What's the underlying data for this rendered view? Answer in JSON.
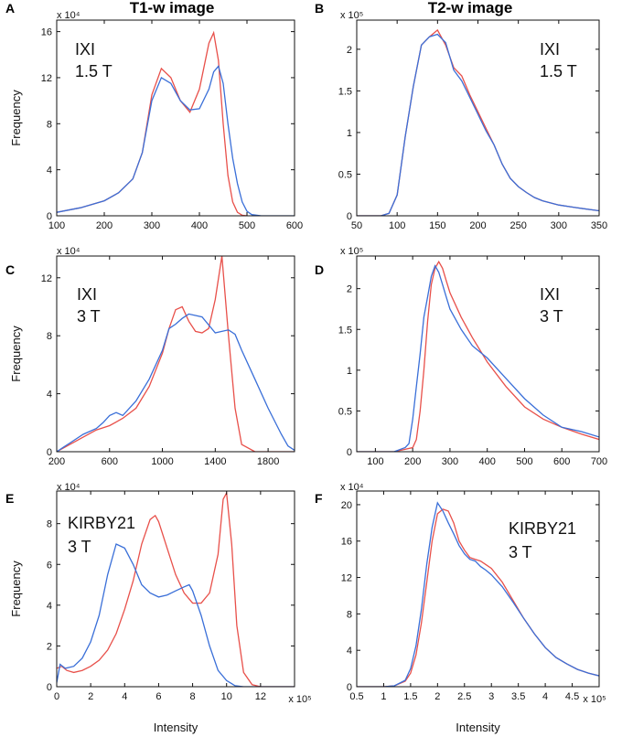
{
  "column_titles": [
    "T1-w image",
    "T2-w image"
  ],
  "colors": {
    "red": "#e8504a",
    "blue": "#3a6fd8",
    "axis": "#111111"
  },
  "chart_data": [
    {
      "id": "A",
      "type": "line",
      "letter": "A",
      "ylabel": "Frequency",
      "xlabel": "",
      "y_exponent": "x 10⁴",
      "annotation": [
        "IXI",
        "1.5 T"
      ],
      "xlim": [
        100,
        600
      ],
      "ylim": [
        0,
        17
      ],
      "xticks": [
        100,
        200,
        300,
        400,
        500,
        600
      ],
      "xtick_labels": [
        "100",
        "200",
        "300",
        "400",
        "500",
        "600"
      ],
      "yticks": [
        0,
        4,
        8,
        12,
        16
      ],
      "ytick_labels": [
        "0",
        "4",
        "8",
        "12",
        "16"
      ],
      "series": [
        {
          "name": "red",
          "x": [
            100,
            150,
            200,
            230,
            260,
            280,
            300,
            320,
            340,
            360,
            380,
            400,
            420,
            430,
            440,
            450,
            460,
            470,
            480,
            490,
            500
          ],
          "y": [
            0.3,
            0.7,
            1.3,
            2.0,
            3.2,
            5.5,
            10.5,
            12.8,
            12.0,
            10.0,
            9.0,
            11.0,
            15.0,
            15.9,
            13.5,
            8.0,
            3.5,
            1.2,
            0.3,
            0.05,
            0
          ]
        },
        {
          "name": "blue",
          "x": [
            100,
            150,
            200,
            230,
            260,
            280,
            300,
            320,
            340,
            360,
            380,
            400,
            420,
            430,
            440,
            450,
            460,
            470,
            480,
            490,
            500,
            510,
            530,
            550,
            600
          ],
          "y": [
            0.3,
            0.7,
            1.3,
            2.0,
            3.2,
            5.5,
            10.0,
            12.0,
            11.5,
            10.0,
            9.2,
            9.3,
            11.0,
            12.5,
            13.0,
            11.5,
            8.0,
            5.0,
            2.8,
            1.2,
            0.4,
            0.1,
            0,
            0,
            0
          ]
        }
      ]
    },
    {
      "id": "B",
      "type": "line",
      "letter": "B",
      "ylabel": "",
      "xlabel": "",
      "y_exponent": "x 10⁵",
      "annotation": [
        "IXI",
        "1.5 T"
      ],
      "xlim": [
        50,
        350
      ],
      "ylim": [
        0,
        2.35
      ],
      "xticks": [
        50,
        100,
        150,
        200,
        250,
        300,
        350
      ],
      "xtick_labels": [
        "50",
        "100",
        "150",
        "200",
        "250",
        "300",
        "350"
      ],
      "yticks": [
        0,
        0.5,
        1,
        1.5,
        2
      ],
      "ytick_labels": [
        "0",
        "0.5",
        "1",
        "1.5",
        "2"
      ],
      "series": [
        {
          "name": "red",
          "x": [
            50,
            80,
            90,
            100,
            110,
            120,
            130,
            140,
            150,
            160,
            170,
            180,
            190,
            200,
            210,
            220,
            230,
            240,
            250,
            260,
            270,
            280,
            300,
            320,
            350
          ],
          "y": [
            0,
            0,
            0.03,
            0.25,
            0.95,
            1.55,
            2.05,
            2.15,
            2.23,
            2.05,
            1.78,
            1.68,
            1.45,
            1.25,
            1.05,
            0.85,
            0.62,
            0.45,
            0.35,
            0.28,
            0.22,
            0.18,
            0.13,
            0.1,
            0.06
          ]
        },
        {
          "name": "blue",
          "x": [
            50,
            80,
            90,
            100,
            110,
            120,
            130,
            140,
            150,
            160,
            170,
            180,
            190,
            200,
            210,
            220,
            230,
            240,
            250,
            260,
            270,
            280,
            300,
            320,
            350
          ],
          "y": [
            0,
            0,
            0.03,
            0.25,
            0.95,
            1.55,
            2.05,
            2.15,
            2.18,
            2.08,
            1.75,
            1.62,
            1.42,
            1.22,
            1.02,
            0.85,
            0.62,
            0.45,
            0.35,
            0.28,
            0.22,
            0.18,
            0.13,
            0.1,
            0.06
          ]
        }
      ]
    },
    {
      "id": "C",
      "type": "line",
      "letter": "C",
      "ylabel": "Frequency",
      "xlabel": "",
      "y_exponent": "x 10⁴",
      "annotation": [
        "IXI",
        "3 T"
      ],
      "xlim": [
        200,
        2000
      ],
      "ylim": [
        0,
        13.5
      ],
      "xticks": [
        200,
        600,
        1000,
        1400,
        1800
      ],
      "xtick_labels": [
        "200",
        "600",
        "1000",
        "1400",
        "1800"
      ],
      "yticks": [
        0,
        4,
        8,
        12
      ],
      "ytick_labels": [
        "0",
        "4",
        "8",
        "12"
      ],
      "series": [
        {
          "name": "red",
          "x": [
            200,
            300,
            400,
            500,
            600,
            700,
            800,
            900,
            1000,
            1050,
            1100,
            1150,
            1200,
            1250,
            1300,
            1350,
            1400,
            1450,
            1500,
            1550,
            1600,
            1700,
            2000
          ],
          "y": [
            0,
            0.5,
            1.0,
            1.5,
            1.8,
            2.3,
            3.0,
            4.5,
            6.8,
            8.5,
            9.8,
            10.0,
            9.0,
            8.3,
            8.2,
            8.5,
            10.5,
            13.5,
            8.0,
            3.0,
            0.5,
            0,
            0
          ]
        },
        {
          "name": "blue",
          "x": [
            200,
            250,
            300,
            400,
            500,
            550,
            600,
            650,
            700,
            800,
            900,
            1000,
            1050,
            1100,
            1150,
            1200,
            1300,
            1400,
            1450,
            1500,
            1550,
            1600,
            1700,
            1800,
            1900,
            1950,
            2000
          ],
          "y": [
            0,
            0.3,
            0.6,
            1.2,
            1.6,
            2.0,
            2.5,
            2.7,
            2.5,
            3.5,
            5.0,
            7.0,
            8.5,
            8.8,
            9.2,
            9.5,
            9.3,
            8.2,
            8.3,
            8.4,
            8.1,
            7.0,
            5.0,
            3.0,
            1.2,
            0.4,
            0.1
          ]
        }
      ]
    },
    {
      "id": "D",
      "type": "line",
      "letter": "D",
      "ylabel": "",
      "xlabel": "",
      "y_exponent": "x 10⁵",
      "annotation": [
        "IXI",
        "3 T"
      ],
      "xlim": [
        50,
        700
      ],
      "ylim": [
        0,
        2.4
      ],
      "xticks": [
        100,
        200,
        300,
        400,
        500,
        600,
        700
      ],
      "xtick_labels": [
        "100",
        "200",
        "300",
        "400",
        "500",
        "600",
        "700"
      ],
      "yticks": [
        0,
        0.5,
        1,
        1.5,
        2
      ],
      "ytick_labels": [
        "0",
        "0.5",
        "1",
        "1.5",
        "2"
      ],
      "series": [
        {
          "name": "red",
          "x": [
            50,
            150,
            200,
            210,
            220,
            230,
            240,
            250,
            260,
            270,
            280,
            290,
            300,
            330,
            360,
            400,
            450,
            500,
            550,
            600,
            650,
            700
          ],
          "y": [
            0,
            0,
            0.05,
            0.15,
            0.5,
            1.0,
            1.6,
            2.05,
            2.25,
            2.33,
            2.25,
            2.1,
            1.95,
            1.65,
            1.4,
            1.1,
            0.8,
            0.55,
            0.4,
            0.3,
            0.22,
            0.15
          ]
        },
        {
          "name": "blue",
          "x": [
            50,
            150,
            180,
            190,
            200,
            210,
            220,
            230,
            240,
            250,
            260,
            270,
            280,
            290,
            300,
            330,
            360,
            400,
            450,
            500,
            550,
            600,
            650,
            700
          ],
          "y": [
            0,
            0,
            0.05,
            0.1,
            0.4,
            0.8,
            1.2,
            1.65,
            1.9,
            2.15,
            2.28,
            2.2,
            2.05,
            1.9,
            1.75,
            1.5,
            1.3,
            1.15,
            0.9,
            0.65,
            0.45,
            0.3,
            0.25,
            0.18
          ]
        }
      ]
    },
    {
      "id": "E",
      "type": "line",
      "letter": "E",
      "ylabel": "Frequency",
      "xlabel": "Intensity",
      "y_exponent": "x 10⁴",
      "x_exponent": "x 10⁵",
      "annotation": [
        "KIRBY21",
        "3 T"
      ],
      "xlim": [
        0,
        14
      ],
      "ylim": [
        0,
        9.6
      ],
      "xticks": [
        0,
        2,
        4,
        6,
        8,
        10,
        12
      ],
      "xtick_labels": [
        "0",
        "2",
        "4",
        "6",
        "8",
        "10",
        "12"
      ],
      "yticks": [
        0,
        2,
        4,
        6,
        8
      ],
      "ytick_labels": [
        "0",
        "2",
        "4",
        "6",
        "8"
      ],
      "series": [
        {
          "name": "red",
          "x": [
            0,
            0.3,
            0.6,
            1,
            1.5,
            2,
            2.5,
            3,
            3.5,
            4,
            4.5,
            5,
            5.5,
            5.8,
            6,
            6.5,
            7,
            7.5,
            8,
            8.5,
            9,
            9.5,
            9.8,
            10,
            10.3,
            10.6,
            11,
            11.5,
            12,
            14
          ],
          "y": [
            0.9,
            1.0,
            0.8,
            0.7,
            0.8,
            1.0,
            1.3,
            1.8,
            2.6,
            3.8,
            5.2,
            7.0,
            8.2,
            8.4,
            8.1,
            6.8,
            5.5,
            4.6,
            4.1,
            4.1,
            4.6,
            6.5,
            9.2,
            9.5,
            7.0,
            3.0,
            0.7,
            0.1,
            0,
            0
          ]
        },
        {
          "name": "blue",
          "x": [
            0,
            0.2,
            0.5,
            1,
            1.5,
            2,
            2.5,
            3,
            3.5,
            4,
            4.5,
            5,
            5.5,
            6,
            6.5,
            7,
            7.5,
            7.8,
            8,
            8.5,
            9,
            9.5,
            10,
            10.5,
            11,
            14
          ],
          "y": [
            0.2,
            1.1,
            0.9,
            1.0,
            1.4,
            2.2,
            3.5,
            5.5,
            7.0,
            6.8,
            6.0,
            5.0,
            4.6,
            4.4,
            4.5,
            4.7,
            4.9,
            5.0,
            4.7,
            3.5,
            2.0,
            0.8,
            0.3,
            0.05,
            0,
            0
          ]
        }
      ]
    },
    {
      "id": "F",
      "type": "line",
      "letter": "F",
      "ylabel": "",
      "xlabel": "Intensity",
      "y_exponent": "x 10⁴",
      "x_exponent": "x 10⁵",
      "annotation": [
        "KIRBY21",
        "3 T"
      ],
      "xlim": [
        0.5,
        5.0
      ],
      "ylim": [
        0,
        21.5
      ],
      "xticks": [
        0.5,
        1,
        1.5,
        2,
        2.5,
        3,
        3.5,
        4,
        4.5
      ],
      "xtick_labels": [
        "0.5",
        "1",
        "1.5",
        "2",
        "2.5",
        "3",
        "3.5",
        "4",
        "4.5"
      ],
      "yticks": [
        0,
        4,
        8,
        12,
        16,
        20
      ],
      "ytick_labels": [
        "0",
        "4",
        "8",
        "12",
        "16",
        "20"
      ],
      "series": [
        {
          "name": "red",
          "x": [
            0.5,
            1.0,
            1.2,
            1.4,
            1.5,
            1.6,
            1.7,
            1.8,
            1.9,
            2.0,
            2.1,
            2.2,
            2.3,
            2.4,
            2.5,
            2.6,
            2.7,
            2.8,
            2.9,
            3.0,
            3.2,
            3.4,
            3.6,
            3.8,
            4.0,
            4.2,
            4.4,
            4.6,
            4.8,
            5.0
          ],
          "y": [
            0,
            0,
            0.1,
            0.6,
            1.5,
            3.5,
            7.0,
            11.5,
            16.0,
            19.0,
            19.5,
            19.3,
            18.0,
            16.0,
            15.0,
            14.2,
            14.0,
            13.8,
            13.4,
            13.0,
            11.5,
            9.5,
            7.5,
            5.8,
            4.3,
            3.2,
            2.5,
            1.9,
            1.5,
            1.2
          ]
        },
        {
          "name": "blue",
          "x": [
            0.5,
            1.0,
            1.2,
            1.4,
            1.5,
            1.6,
            1.7,
            1.8,
            1.9,
            2.0,
            2.1,
            2.2,
            2.3,
            2.4,
            2.5,
            2.6,
            2.7,
            2.8,
            2.9,
            3.0,
            3.2,
            3.4,
            3.6,
            3.8,
            4.0,
            4.2,
            4.4,
            4.6,
            4.8,
            5.0
          ],
          "y": [
            0,
            0,
            0.1,
            0.7,
            2.0,
            4.5,
            8.5,
            13.5,
            17.5,
            20.2,
            19.3,
            18.0,
            16.8,
            15.5,
            14.6,
            14.0,
            13.8,
            13.2,
            12.8,
            12.3,
            11.0,
            9.3,
            7.5,
            5.8,
            4.3,
            3.2,
            2.5,
            1.9,
            1.5,
            1.2
          ]
        }
      ]
    }
  ]
}
